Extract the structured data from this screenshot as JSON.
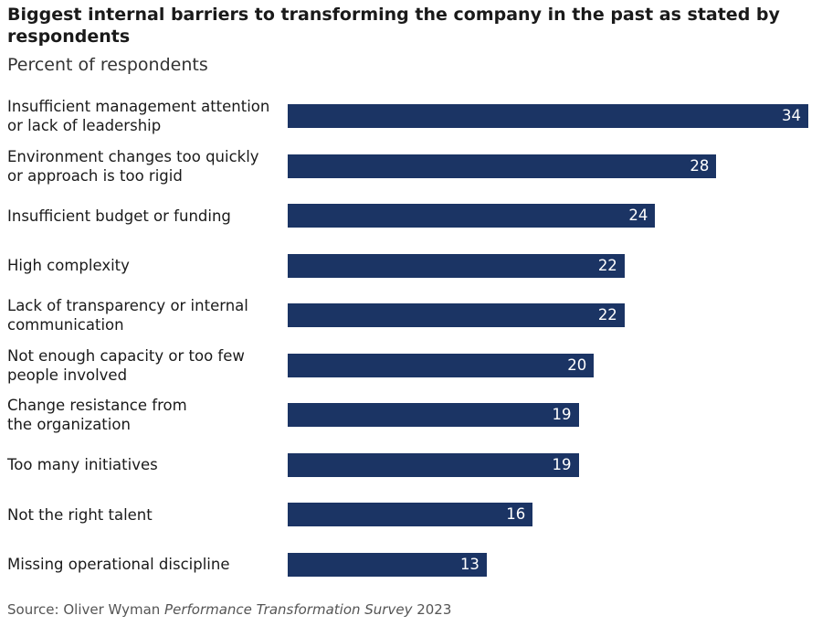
{
  "chart_data": {
    "type": "bar",
    "orientation": "horizontal",
    "title": "Biggest internal barriers to transforming the company in the past as stated by respondents",
    "subtitle": "Percent of respondents",
    "categories": [
      "Insufficient management attention\nor lack of leadership",
      "Environment changes too quickly\nor approach is too rigid",
      "Insufficient budget or funding",
      "High complexity",
      "Lack of transparency or internal\ncommunication",
      "Not enough capacity or too few\npeople involved",
      "Change resistance from\nthe organization",
      "Too many initiatives",
      "Not the right talent",
      "Missing operational discipline"
    ],
    "values": [
      34,
      28,
      24,
      22,
      22,
      20,
      19,
      19,
      16,
      13
    ],
    "xlim": [
      0,
      34
    ],
    "grid": false,
    "bar_color": "#1b3464",
    "value_label_color": "#ffffff"
  },
  "source": {
    "prefix": "Source: Oliver Wyman ",
    "italic": "Performance Transformation Survey",
    "suffix": " 2023"
  }
}
